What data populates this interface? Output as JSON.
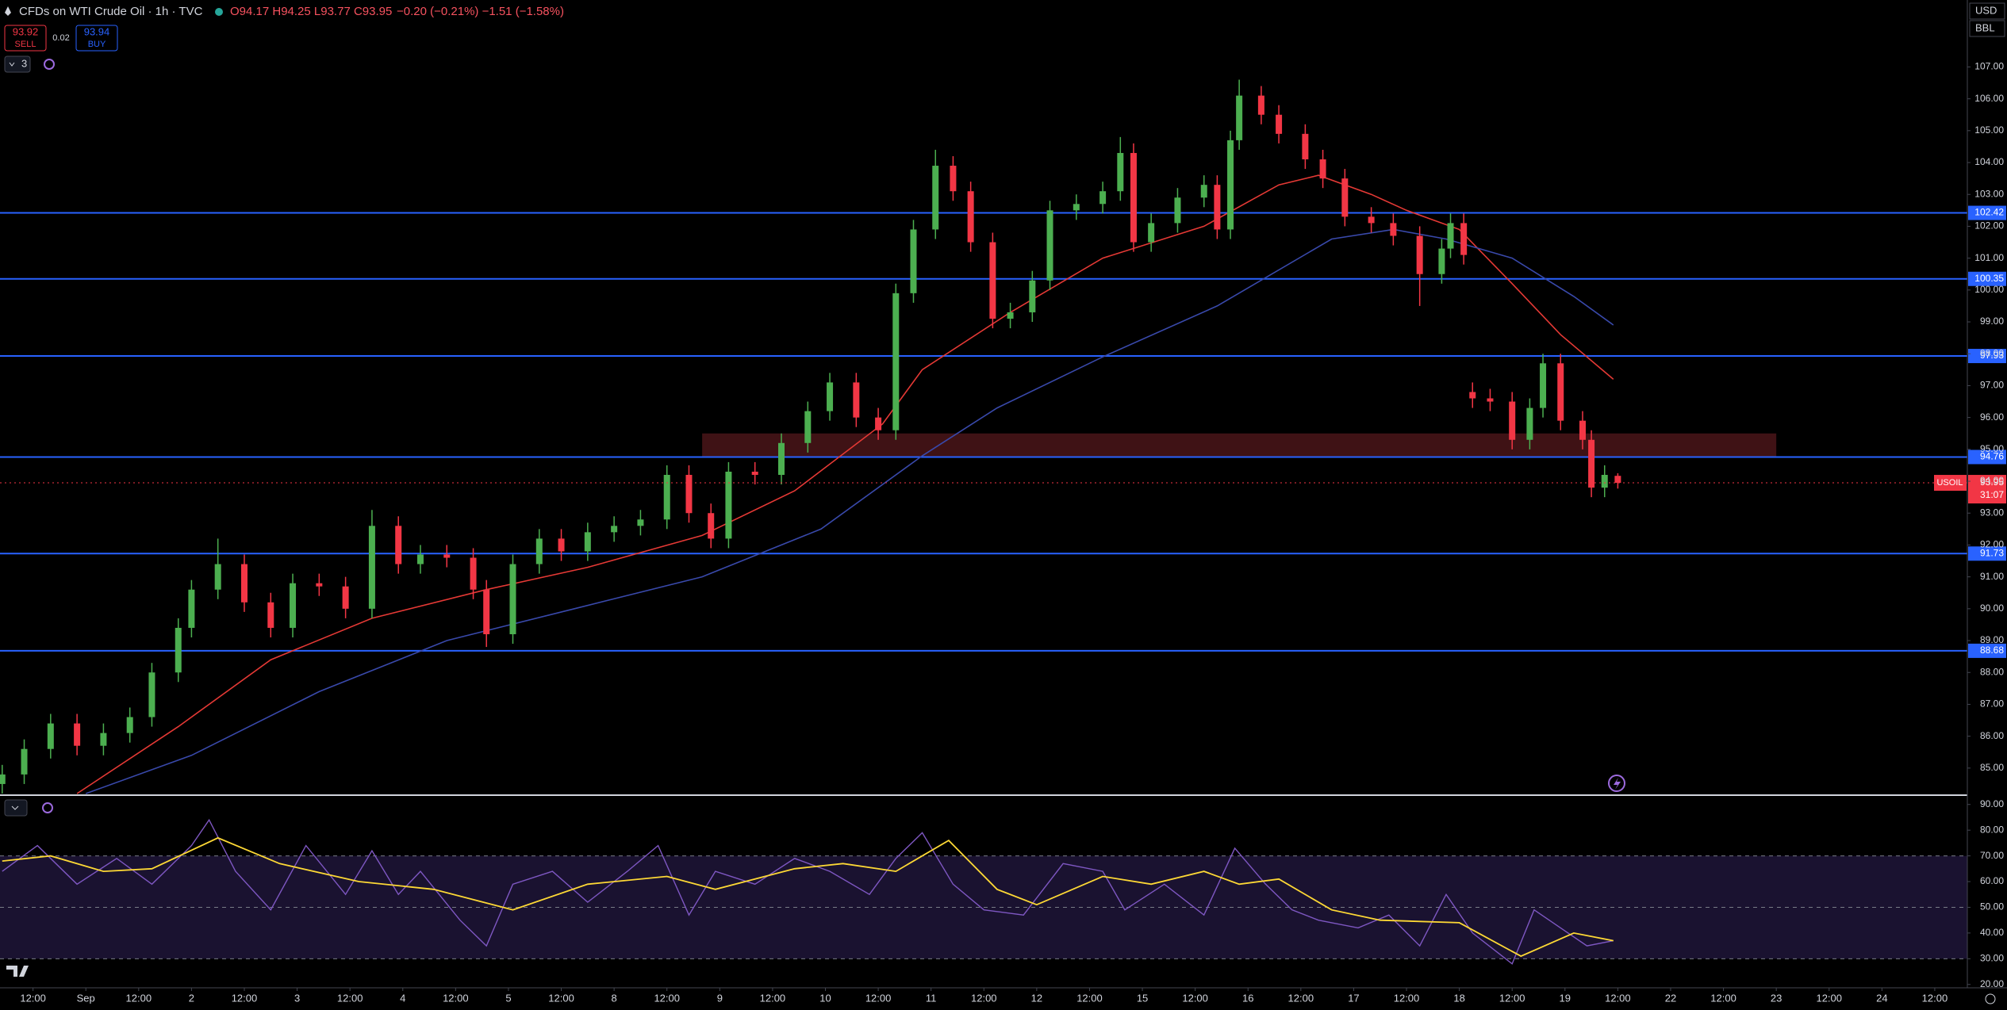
{
  "header": {
    "title": "CFDs on WTI Crude Oil · 1h · TVC",
    "ohlc": "O94.17 H94.25 L93.77 C93.95",
    "change": "−0.20 (−0.21%) −1.51 (−1.58%)",
    "sell_price": "93.92",
    "sell_label": "SELL",
    "spread": "0.02",
    "buy_price": "93.94",
    "buy_label": "BUY",
    "indicator_count": "3",
    "currency": "USD",
    "unit": "BBL"
  },
  "chart_data": [
    {
      "type": "candlestick",
      "x": [
        5,
        10,
        16,
        22,
        28,
        34,
        39,
        45,
        48,
        54,
        60,
        66,
        71,
        77,
        83,
        89,
        95,
        100,
        106,
        112,
        115,
        121,
        127,
        132,
        138,
        144,
        150,
        156,
        161,
        166,
        170,
        176,
        182,
        188,
        193,
        199,
        204,
        208,
        212,
        217,
        221,
        225,
        230,
        234,
        239,
        243,
        249,
        255,
        259,
        262,
        266,
        272,
        278,
        281,
        284,
        286,
        291,
        295,
        301,
        305,
        310,
        316,
        321,
        327,
        332,
        334,
        337,
        339,
        343,
        348,
        352,
        355,
        359,
        364,
        366,
        369,
        372
      ],
      "open": [
        84.5,
        84.8,
        85.6,
        86.4,
        85.7,
        86.1,
        86.6,
        88.0,
        89.4,
        90.6,
        91.4,
        90.2,
        89.4,
        90.8,
        90.7,
        90.0,
        92.6,
        91.4,
        91.7,
        91.6,
        90.6,
        89.2,
        91.4,
        92.2,
        91.8,
        92.4,
        92.6,
        92.8,
        94.2,
        93.0,
        92.2,
        94.3,
        94.2,
        95.2,
        96.2,
        97.1,
        96.0,
        95.6,
        99.9,
        101.9,
        103.9,
        103.1,
        101.5,
        99.1,
        99.3,
        100.3,
        102.5,
        102.7,
        103.1,
        104.3,
        101.5,
        102.1,
        102.9,
        103.3,
        101.9,
        104.7,
        106.1,
        105.5,
        104.9,
        104.1,
        103.5,
        102.3,
        102.1,
        101.7,
        100.5,
        101.3,
        102.1,
        96.8,
        96.6,
        96.5,
        95.3,
        96.3,
        97.7,
        95.9,
        95.3,
        93.8,
        94.17
      ],
      "high": [
        85.1,
        85.9,
        86.7,
        86.7,
        86.4,
        86.9,
        88.3,
        89.7,
        90.9,
        92.2,
        91.7,
        90.5,
        91.1,
        91.1,
        91.0,
        93.1,
        92.9,
        92.0,
        92.0,
        91.9,
        90.9,
        91.7,
        92.5,
        92.5,
        92.7,
        92.9,
        93.1,
        94.5,
        94.5,
        93.3,
        94.6,
        94.6,
        95.5,
        96.5,
        97.4,
        97.4,
        96.3,
        100.2,
        102.2,
        104.4,
        104.2,
        103.4,
        101.8,
        99.6,
        100.6,
        102.8,
        103.0,
        103.4,
        104.8,
        104.6,
        102.4,
        103.2,
        103.6,
        103.6,
        105.0,
        106.6,
        106.4,
        105.8,
        105.2,
        104.4,
        103.8,
        102.6,
        102.4,
        102.0,
        101.6,
        102.4,
        102.4,
        97.1,
        96.9,
        96.8,
        96.6,
        98.0,
        98.0,
        96.2,
        95.6,
        94.5,
        94.25
      ],
      "low": [
        84.2,
        84.5,
        85.3,
        85.4,
        85.4,
        85.8,
        86.3,
        87.7,
        89.1,
        90.3,
        89.9,
        89.1,
        89.1,
        90.4,
        89.7,
        89.7,
        91.1,
        91.1,
        91.3,
        90.3,
        88.8,
        88.9,
        91.1,
        91.5,
        91.5,
        92.1,
        92.3,
        92.5,
        92.7,
        91.9,
        91.9,
        93.9,
        93.9,
        94.9,
        95.9,
        95.7,
        95.3,
        95.3,
        99.6,
        101.6,
        102.8,
        101.2,
        98.8,
        98.8,
        99.0,
        100.0,
        102.2,
        102.4,
        102.8,
        101.2,
        101.2,
        101.8,
        102.6,
        101.6,
        101.6,
        104.4,
        105.2,
        104.6,
        103.8,
        103.2,
        102.0,
        101.8,
        101.4,
        99.5,
        100.2,
        101.0,
        100.8,
        96.3,
        96.2,
        95.0,
        95.0,
        96.0,
        95.6,
        95.0,
        93.5,
        93.5,
        93.77
      ],
      "close": [
        84.8,
        85.6,
        86.4,
        85.7,
        86.1,
        86.6,
        88.0,
        89.4,
        90.6,
        91.4,
        90.2,
        89.4,
        90.8,
        90.7,
        90.0,
        92.6,
        91.4,
        91.7,
        91.6,
        90.6,
        89.2,
        91.4,
        92.2,
        91.8,
        92.4,
        92.6,
        92.8,
        94.2,
        93.0,
        92.2,
        94.3,
        94.2,
        95.2,
        96.2,
        97.1,
        96.0,
        95.6,
        99.9,
        101.9,
        103.9,
        103.1,
        101.5,
        99.1,
        99.3,
        100.3,
        102.5,
        102.7,
        103.1,
        104.3,
        101.5,
        102.1,
        102.9,
        103.3,
        101.9,
        104.7,
        106.1,
        105.5,
        104.9,
        104.1,
        103.5,
        102.3,
        102.1,
        101.7,
        100.5,
        101.3,
        102.1,
        101.1,
        96.6,
        96.5,
        95.3,
        96.3,
        97.7,
        95.9,
        95.3,
        93.8,
        94.2,
        93.95
      ],
      "up_color": "#4caf50",
      "down_color": "#f23645",
      "moving_averages": [
        {
          "color": "#e53935",
          "x": [
            22,
            45,
            66,
            89,
            115,
            138,
            164,
            185,
            205,
            214,
            234,
            255,
            278,
            295,
            304,
            316,
            324,
            336,
            348,
            359,
            371
          ],
          "values": [
            84.2,
            86.3,
            88.4,
            89.7,
            90.6,
            91.3,
            92.3,
            93.7,
            95.8,
            97.5,
            99.3,
            101.0,
            102.0,
            103.3,
            103.6,
            103.0,
            102.5,
            101.9,
            100.2,
            98.6,
            97.2
          ]
        },
        {
          "color": "#3949ab",
          "x": [
            24,
            48,
            77,
            106,
            135,
            164,
            191,
            214,
            231,
            255,
            281,
            307,
            321,
            333,
            348,
            362,
            371
          ],
          "values": [
            84.2,
            85.4,
            87.4,
            89.0,
            90.0,
            91.0,
            92.5,
            94.8,
            96.3,
            97.9,
            99.5,
            101.6,
            101.9,
            101.6,
            101.0,
            99.8,
            98.9
          ]
        }
      ],
      "levels": {
        "values": [
          102.42,
          100.35,
          97.93,
          94.76,
          91.73,
          88.68
        ],
        "color": "#2962ff"
      },
      "zone": {
        "x": [
          164,
          408
        ],
        "y": [
          94.76,
          95.5
        ],
        "color": "#4a1519"
      },
      "last_price": {
        "value": 93.95,
        "countdown": "31:07",
        "symbol": "USOIL",
        "color": "#f23645"
      },
      "xlim": [
        4.5,
        451.4
      ],
      "xticks": [
        {
          "value": 12,
          "label": "12:00"
        },
        {
          "value": 24,
          "label": "Sep"
        },
        {
          "value": 36,
          "label": "12:00"
        },
        {
          "value": 48,
          "label": "2"
        },
        {
          "value": 60,
          "label": "12:00"
        },
        {
          "value": 72,
          "label": "3"
        },
        {
          "value": 84,
          "label": "12:00"
        },
        {
          "value": 96,
          "label": "4"
        },
        {
          "value": 108,
          "label": "12:00"
        },
        {
          "value": 120,
          "label": "5"
        },
        {
          "value": 132,
          "label": "12:00"
        },
        {
          "value": 144,
          "label": "8"
        },
        {
          "value": 156,
          "label": "12:00"
        },
        {
          "value": 168,
          "label": "9"
        },
        {
          "value": 180,
          "label": "12:00"
        },
        {
          "value": 192,
          "label": "10"
        },
        {
          "value": 204,
          "label": "12:00"
        },
        {
          "value": 216,
          "label": "11"
        },
        {
          "value": 228,
          "label": "12:00"
        },
        {
          "value": 240,
          "label": "12"
        },
        {
          "value": 252,
          "label": "12:00"
        },
        {
          "value": 264,
          "label": "15"
        },
        {
          "value": 276,
          "label": "12:00"
        },
        {
          "value": 288,
          "label": "16"
        },
        {
          "value": 300,
          "label": "12:00"
        },
        {
          "value": 312,
          "label": "17"
        },
        {
          "value": 324,
          "label": "12:00"
        },
        {
          "value": 336,
          "label": "18"
        },
        {
          "value": 348,
          "label": "12:00"
        },
        {
          "value": 360,
          "label": "19"
        },
        {
          "value": 372,
          "label": "12:00"
        },
        {
          "value": 384,
          "label": "22"
        },
        {
          "value": 396,
          "label": "12:00"
        },
        {
          "value": 408,
          "label": "23"
        },
        {
          "value": 420,
          "label": "12:00"
        },
        {
          "value": 432,
          "label": "24"
        },
        {
          "value": 444,
          "label": "12:00"
        }
      ],
      "ylim": [
        84.2,
        109.1
      ],
      "yticks": [
        {
          "value": 85,
          "label": "85.00"
        },
        {
          "value": 86,
          "label": "86.00"
        },
        {
          "value": 87,
          "label": "87.00"
        },
        {
          "value": 88,
          "label": "88.00"
        },
        {
          "value": 89,
          "label": "89.00"
        },
        {
          "value": 90,
          "label": "90.00"
        },
        {
          "value": 91,
          "label": "91.00"
        },
        {
          "value": 92,
          "label": "92.00"
        },
        {
          "value": 93,
          "label": "93.00"
        },
        {
          "value": 94,
          "label": "94.00"
        },
        {
          "value": 95,
          "label": "95.00"
        },
        {
          "value": 96,
          "label": "96.00"
        },
        {
          "value": 97,
          "label": "97.00"
        },
        {
          "value": 98,
          "label": "98.00"
        },
        {
          "value": 99,
          "label": "99.00"
        },
        {
          "value": 100,
          "label": "100.00"
        },
        {
          "value": 101,
          "label": "101.00"
        },
        {
          "value": 102,
          "label": "102.00"
        },
        {
          "value": 103,
          "label": "103.00"
        },
        {
          "value": 104,
          "label": "104.00"
        },
        {
          "value": 105,
          "label": "105.00"
        },
        {
          "value": 106,
          "label": "106.00"
        },
        {
          "value": 107,
          "label": "107.00"
        }
      ]
    },
    {
      "type": "line",
      "series": [
        {
          "color": "#7e57c2",
          "x": [
            5,
            13,
            22,
            31,
            39,
            48,
            52,
            58,
            66,
            74,
            83,
            89,
            95,
            100,
            109,
            115,
            121,
            130,
            138,
            147,
            154,
            161,
            167,
            176,
            185,
            193,
            202,
            208,
            214,
            221,
            228,
            237,
            246,
            255,
            260,
            269,
            278,
            285,
            292,
            298,
            304,
            313,
            320,
            327,
            333,
            339,
            348,
            353,
            359,
            365,
            371
          ],
          "values": [
            64,
            74,
            59,
            69,
            59,
            74,
            84,
            64,
            49,
            74,
            55,
            72,
            55,
            64,
            45,
            35,
            59,
            64,
            52,
            64,
            74,
            47,
            64,
            59,
            69,
            64,
            55,
            69,
            79,
            59,
            49,
            47,
            67,
            64,
            49,
            59,
            47,
            73,
            59,
            49,
            45,
            42,
            47,
            35,
            55,
            40,
            28,
            49,
            42,
            35,
            37
          ]
        },
        {
          "color": "#fdd835",
          "x": [
            5,
            16,
            28,
            39,
            54,
            68,
            86,
            103,
            121,
            138,
            156,
            167,
            185,
            196,
            208,
            220,
            231,
            240,
            255,
            266,
            278,
            286,
            295,
            307,
            318,
            336,
            350,
            362,
            371
          ],
          "values": [
            68,
            70,
            64,
            65,
            77,
            67,
            60,
            57,
            49,
            59,
            62,
            57,
            65,
            67,
            64,
            76,
            57,
            51,
            62,
            59,
            64,
            59,
            61,
            49,
            45,
            44,
            31,
            40,
            37
          ]
        }
      ],
      "bands": [
        70,
        50,
        30
      ],
      "band_fill": "#1a1230",
      "xlim": [
        4.5,
        451.4
      ],
      "ylim": [
        19,
        93
      ],
      "yticks": [
        {
          "value": 20,
          "label": "20.00"
        },
        {
          "value": 30,
          "label": "30.00"
        },
        {
          "value": 40,
          "label": "40.00"
        },
        {
          "value": 50,
          "label": "50.00"
        },
        {
          "value": 60,
          "label": "60.00"
        },
        {
          "value": 70,
          "label": "70.00"
        },
        {
          "value": 80,
          "label": "80.00"
        },
        {
          "value": 90,
          "label": "90.00"
        }
      ]
    }
  ]
}
